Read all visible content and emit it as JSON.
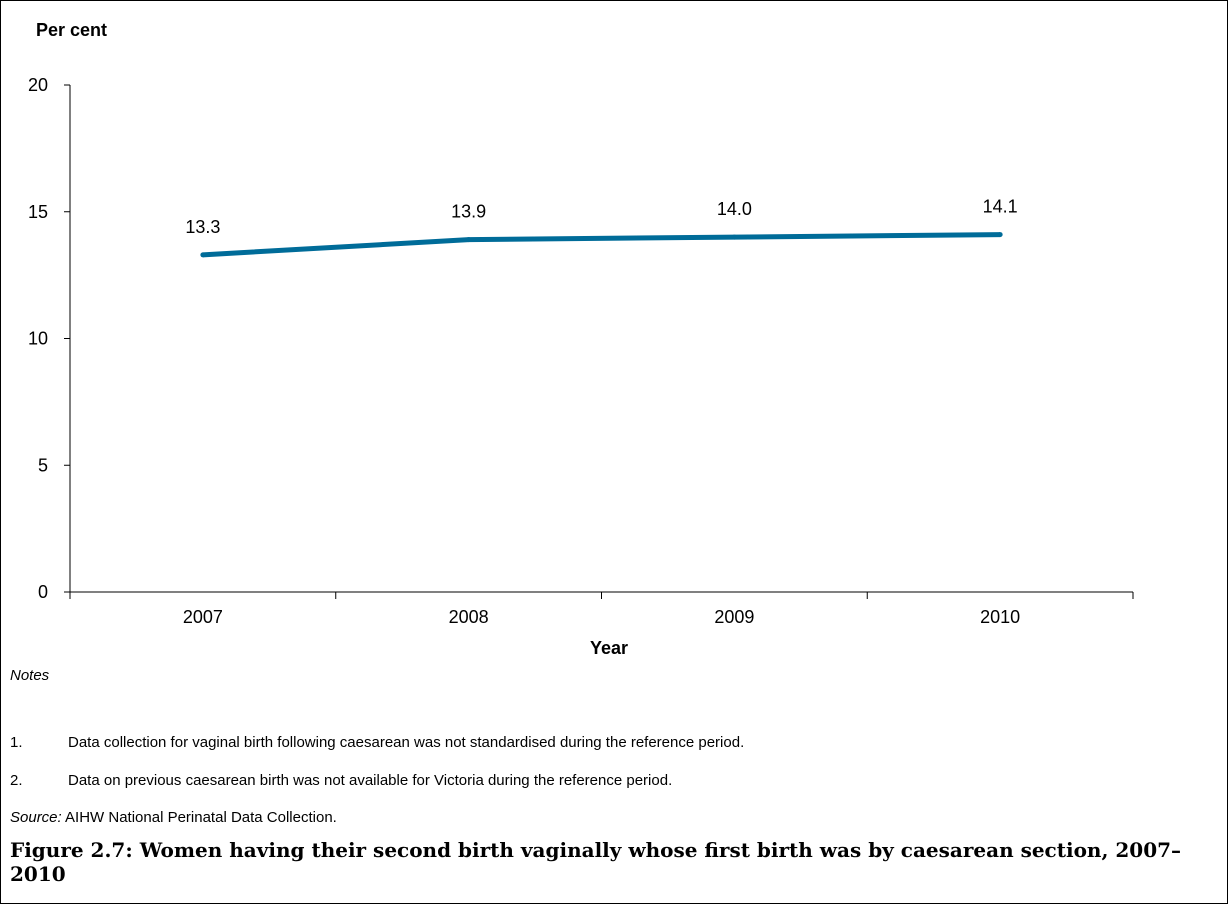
{
  "chart_data": {
    "type": "line",
    "ylabel": "Per cent",
    "xlabel": "Year",
    "categories": [
      "2007",
      "2008",
      "2009",
      "2010"
    ],
    "series": [
      {
        "values": [
          13.3,
          13.9,
          14.0,
          14.1
        ],
        "color": "#006C99"
      }
    ],
    "data_labels": [
      "13.3",
      "13.9",
      "14.0",
      "14.1"
    ],
    "ylim": [
      0,
      20
    ],
    "yticks": [
      0,
      5,
      10,
      15,
      20
    ],
    "grid": false,
    "legend": "none"
  },
  "notes": {
    "heading": "Notes",
    "items": [
      {
        "num": "1.",
        "text": "Data collection for vaginal birth following caesarean was not standardised during the reference period."
      },
      {
        "num": "2.",
        "text": "Data on previous caesarean birth was not available for Victoria during the reference period."
      }
    ]
  },
  "source": {
    "label": "Source:",
    "text": " AIHW National Perinatal Data Collection."
  },
  "caption": "Figure 2.7: Women having their second birth vaginally whose first birth was by caesarean section, 2007–2010"
}
